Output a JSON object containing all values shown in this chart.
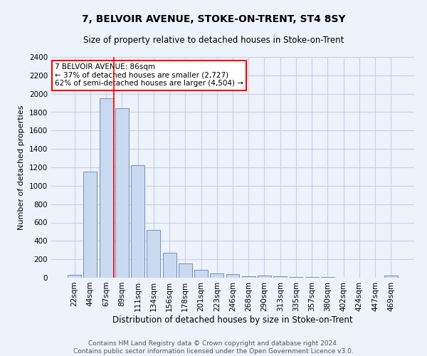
{
  "title": "7, BELVOIR AVENUE, STOKE-ON-TRENT, ST4 8SY",
  "subtitle": "Size of property relative to detached houses in Stoke-on-Trent",
  "xlabel": "Distribution of detached houses by size in Stoke-on-Trent",
  "ylabel": "Number of detached properties",
  "categories": [
    "22sqm",
    "44sqm",
    "67sqm",
    "89sqm",
    "111sqm",
    "134sqm",
    "156sqm",
    "178sqm",
    "201sqm",
    "223sqm",
    "246sqm",
    "268sqm",
    "290sqm",
    "313sqm",
    "335sqm",
    "357sqm",
    "380sqm",
    "402sqm",
    "424sqm",
    "447sqm",
    "469sqm"
  ],
  "values": [
    30,
    1150,
    1950,
    1840,
    1220,
    520,
    270,
    155,
    85,
    47,
    40,
    18,
    20,
    18,
    10,
    8,
    5,
    3,
    2,
    2,
    20
  ],
  "bar_color": "#c9d9f0",
  "bar_edge_color": "#7090c0",
  "grid_color": "#c8d0e8",
  "bg_color": "#eef2fb",
  "vline_color": "red",
  "vline_x": 2.5,
  "annotation_text": "7 BELVOIR AVENUE: 86sqm\n← 37% of detached houses are smaller (2,727)\n62% of semi-detached houses are larger (4,504) →",
  "annotation_box_color": "white",
  "annotation_box_edge": "red",
  "ylim": [
    0,
    2400
  ],
  "yticks": [
    0,
    200,
    400,
    600,
    800,
    1000,
    1200,
    1400,
    1600,
    1800,
    2000,
    2200,
    2400
  ],
  "footer": "Contains HM Land Registry data © Crown copyright and database right 2024.\nContains public sector information licensed under the Open Government Licence v3.0.",
  "title_fontsize": 10,
  "subtitle_fontsize": 8.5,
  "xlabel_fontsize": 8.5,
  "ylabel_fontsize": 8,
  "tick_fontsize": 7.5,
  "footer_fontsize": 6.5,
  "annotation_fontsize": 7.5
}
